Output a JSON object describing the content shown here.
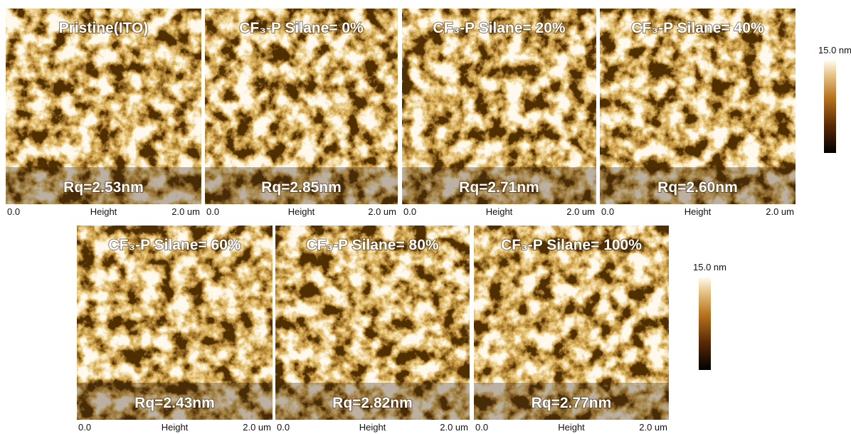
{
  "panels": [
    {
      "title": "Pristine(ITO)",
      "rq": "Rq=2.53nm",
      "x_start": "0.0",
      "x_label": "Height",
      "x_end": "2.0 um"
    },
    {
      "title": "CF₃-P Silane= 0%",
      "rq": "Rq=2.85nm",
      "x_start": "0.0",
      "x_label": "Height",
      "x_end": "2.0 um"
    },
    {
      "title": "CF₃-P Silane= 20%",
      "rq": "Rq=2.71nm",
      "x_start": "0.0",
      "x_label": "Height",
      "x_end": "2.0 um"
    },
    {
      "title": "CF₃-P Silane= 40%",
      "rq": "Rq=2.60nm",
      "x_start": "0.0",
      "x_label": "Height",
      "x_end": "2.0 um"
    },
    {
      "title": "CF₃-P Silane= 60%",
      "rq": "Rq=2.43nm",
      "x_start": "0.0",
      "x_label": "Height",
      "x_end": "2.0 um"
    },
    {
      "title": "CF₃-P Silane= 80%",
      "rq": "Rq=2.82nm",
      "x_start": "0.0",
      "x_label": "Height",
      "x_end": "2.0 um"
    },
    {
      "title": "CF₃-P Silane= 100%",
      "rq": "Rq=2.77nm",
      "x_start": "0.0",
      "x_label": "Height",
      "x_end": "2.0 um"
    }
  ],
  "colorbars": [
    {
      "label": "15.0 nm"
    },
    {
      "label": "15.0 nm"
    }
  ]
}
